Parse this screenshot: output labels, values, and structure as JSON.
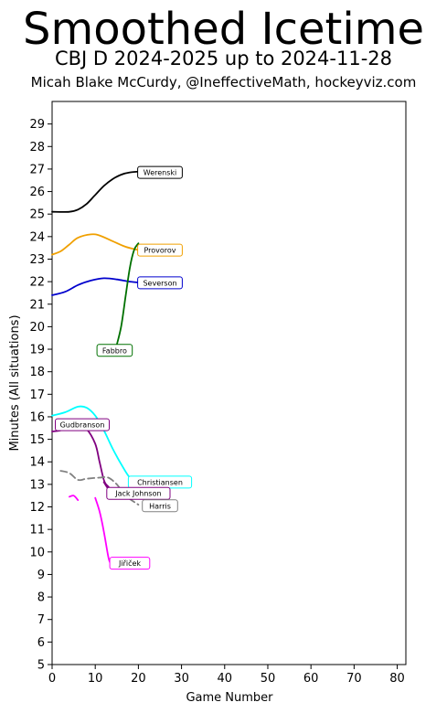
{
  "chart_data": {
    "type": "line",
    "title": "Smoothed Icetime",
    "subtitle": "CBJ D 2024-2025 up to 2024-11-28",
    "byline": "Micah Blake McCurdy, @IneffectiveMath, hockeyviz.com",
    "xlabel": "Game Number",
    "ylabel": "Minutes (All situations)",
    "xlim": [
      0,
      82
    ],
    "ylim": [
      5,
      30
    ],
    "x_ticks": [
      0,
      10,
      20,
      30,
      40,
      50,
      60,
      70,
      80
    ],
    "y_ticks": [
      5,
      6,
      7,
      8,
      9,
      10,
      11,
      12,
      13,
      14,
      15,
      16,
      17,
      18,
      19,
      20,
      21,
      22,
      23,
      24,
      25,
      26,
      27,
      28,
      29
    ],
    "grid": false,
    "series": [
      {
        "name": "Werenski",
        "color": "#000000",
        "dash": "solid",
        "points": [
          [
            0,
            25.1
          ],
          [
            4,
            25.1
          ],
          [
            6,
            25.2
          ],
          [
            8,
            25.45
          ],
          [
            10,
            25.85
          ],
          [
            12,
            26.25
          ],
          [
            14,
            26.55
          ],
          [
            16,
            26.75
          ],
          [
            18,
            26.85
          ],
          [
            21,
            26.9
          ]
        ],
        "label": {
          "x": 25,
          "y": 26.85
        }
      },
      {
        "name": "Provorov",
        "color": "#f0a000",
        "dash": "solid",
        "points": [
          [
            0,
            23.2
          ],
          [
            2,
            23.35
          ],
          [
            4,
            23.65
          ],
          [
            6,
            23.95
          ],
          [
            9,
            24.1
          ],
          [
            11,
            24.05
          ],
          [
            14,
            23.8
          ],
          [
            17,
            23.55
          ],
          [
            20,
            23.4
          ]
        ],
        "label": {
          "x": 25,
          "y": 23.4
        }
      },
      {
        "name": "Severson",
        "color": "#0000cd",
        "dash": "solid",
        "points": [
          [
            0,
            21.4
          ],
          [
            3,
            21.55
          ],
          [
            6,
            21.85
          ],
          [
            9,
            22.05
          ],
          [
            12,
            22.15
          ],
          [
            15,
            22.1
          ],
          [
            18,
            22.0
          ],
          [
            21,
            21.95
          ]
        ],
        "label": {
          "x": 25,
          "y": 21.95
        }
      },
      {
        "name": "Fabbro",
        "color": "#007000",
        "dash": "solid",
        "points": [
          [
            15,
            19.2
          ],
          [
            16,
            20.0
          ],
          [
            17,
            21.3
          ],
          [
            18,
            22.6
          ],
          [
            19,
            23.4
          ],
          [
            20,
            23.7
          ]
        ],
        "label": {
          "x": 14.5,
          "y": 18.95
        }
      },
      {
        "name": "Gudbranson",
        "color": "#800080",
        "dash": "solid",
        "points": [
          [
            0,
            15.35
          ],
          [
            2,
            15.4
          ],
          [
            4,
            15.55
          ],
          [
            6,
            15.6
          ],
          [
            8,
            15.45
          ],
          [
            10,
            14.8
          ],
          [
            11,
            14.0
          ],
          [
            12,
            13.2
          ],
          [
            13,
            12.9
          ],
          [
            15,
            12.6
          ],
          [
            17,
            12.55
          ]
        ],
        "label": {
          "x": 7,
          "y": 15.65
        }
      },
      {
        "name": "Christiansen",
        "color": "#00ffff",
        "dash": "solid",
        "points": [
          [
            0,
            16.05
          ],
          [
            3,
            16.2
          ],
          [
            6,
            16.45
          ],
          [
            8,
            16.4
          ],
          [
            10,
            16.05
          ],
          [
            12,
            15.4
          ],
          [
            14,
            14.6
          ],
          [
            16,
            13.9
          ],
          [
            18,
            13.3
          ],
          [
            20,
            13.05
          ]
        ],
        "label": {
          "x": 25,
          "y": 13.1
        }
      },
      {
        "name": "Jack Johnson",
        "color": "#800080",
        "dash": "solid",
        "points": [
          [
            12,
            13.1
          ],
          [
            13,
            12.8
          ],
          [
            14,
            12.6
          ],
          [
            17,
            12.55
          ],
          [
            20,
            12.6
          ]
        ],
        "label": {
          "x": 20,
          "y": 12.6
        }
      },
      {
        "name": "Harris",
        "color": "#808080",
        "dash": "dashed",
        "points": [
          [
            2,
            13.6
          ],
          [
            4,
            13.5
          ],
          [
            6,
            13.2
          ],
          [
            8,
            13.25
          ],
          [
            11,
            13.3
          ],
          [
            13,
            13.3
          ],
          [
            15,
            13.0
          ],
          [
            17,
            12.5
          ],
          [
            20,
            12.1
          ]
        ],
        "label": {
          "x": 25,
          "y": 12.05
        }
      },
      {
        "name": "Jiriček",
        "label_text": "Jiřiček",
        "color": "#ff00ff",
        "dash": "solid",
        "points_segments": [
          [
            [
              4,
              12.45
            ],
            [
              5,
              12.5
            ],
            [
              6,
              12.3
            ]
          ],
          [
            [
              10,
              12.4
            ],
            [
              11,
              11.8
            ],
            [
              12,
              10.9
            ],
            [
              13,
              9.8
            ],
            [
              13.5,
              9.5
            ]
          ]
        ],
        "label": {
          "x": 18,
          "y": 9.5
        }
      }
    ]
  }
}
